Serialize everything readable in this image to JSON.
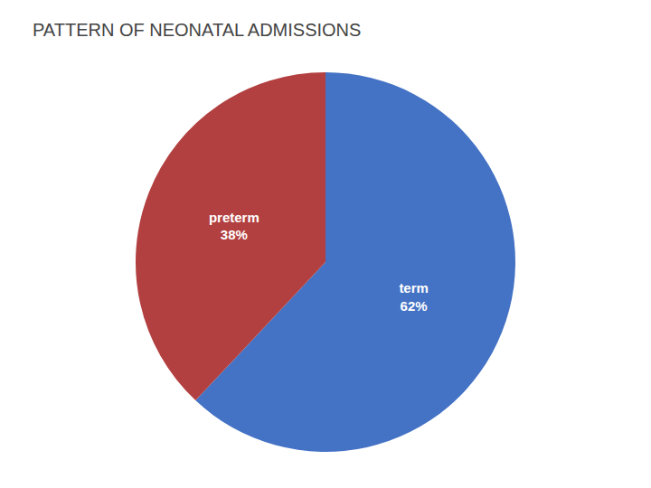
{
  "chart_data": {
    "type": "pie",
    "title": "PATTERN OF NEONATAL ADMISSIONS",
    "categories": [
      "term",
      "preterm"
    ],
    "values": [
      62,
      38
    ],
    "value_labels": [
      "62%",
      "38%"
    ],
    "data_labels": true,
    "colors": [
      "#4472C4",
      "#B34040"
    ]
  }
}
